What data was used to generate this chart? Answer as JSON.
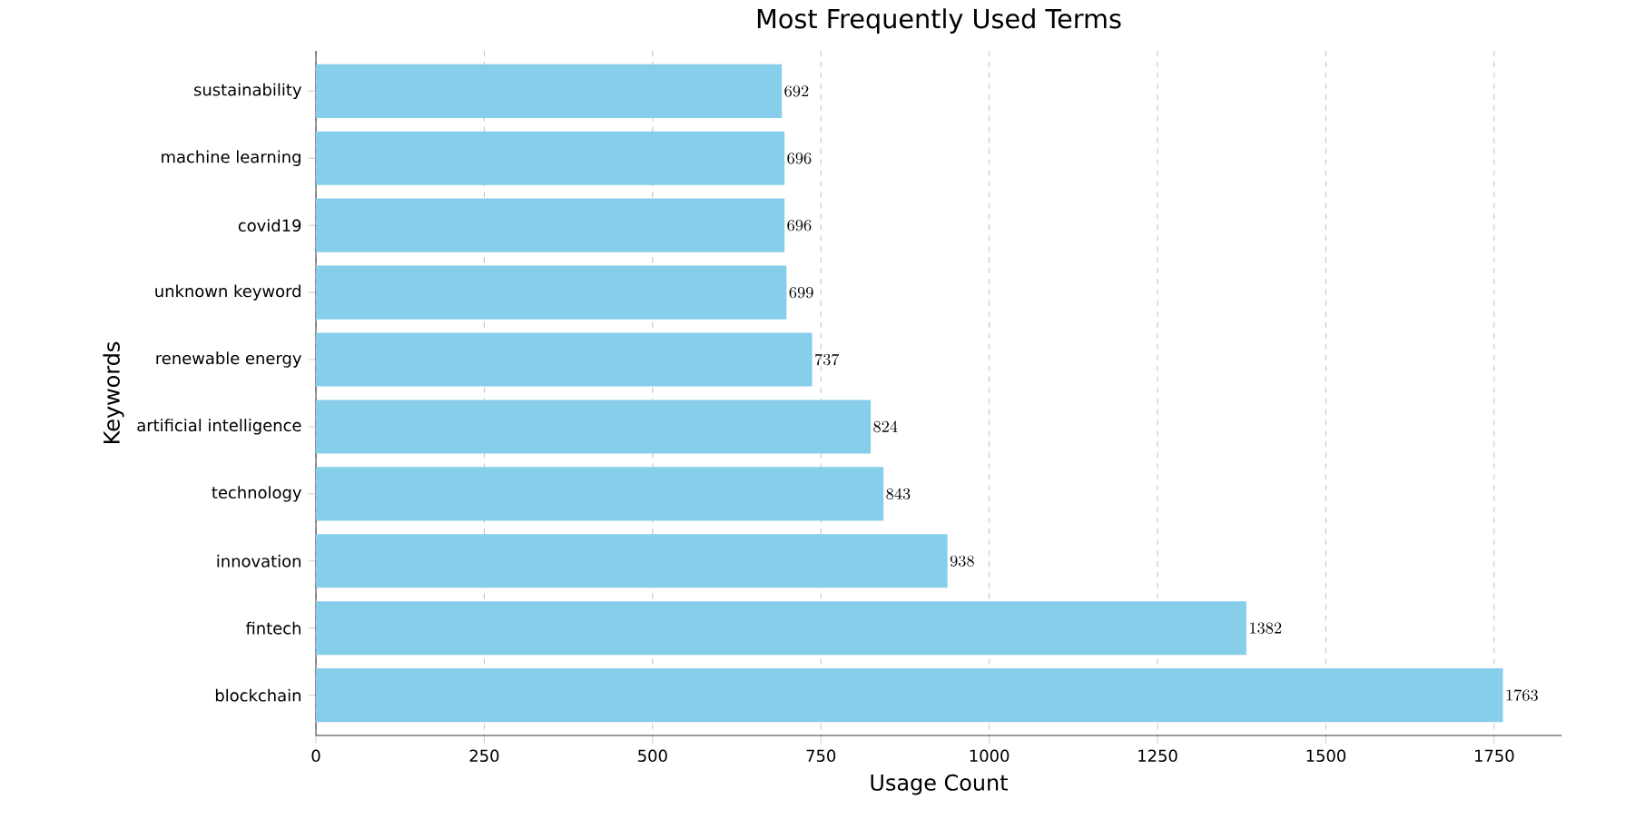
{
  "chart_data": {
    "type": "bar",
    "orientation": "horizontal",
    "title": "Most Frequently Used Terms",
    "xlabel": "Usage Count",
    "ylabel": "Keywords",
    "categories": [
      "sustainability",
      "machine learning",
      "covid19",
      "unknown keyword",
      "renewable energy",
      "artificial intelligence",
      "technology",
      "innovation",
      "fintech",
      "blockchain"
    ],
    "values": [
      692,
      696,
      696,
      699,
      737,
      824,
      843,
      938,
      1382,
      1763
    ],
    "color": "#87ceeb",
    "xlim": [
      0,
      1850
    ],
    "xticks": [
      0,
      250,
      500,
      750,
      1000,
      1250,
      1500,
      1750
    ],
    "grid": "x",
    "data_labels": true
  }
}
